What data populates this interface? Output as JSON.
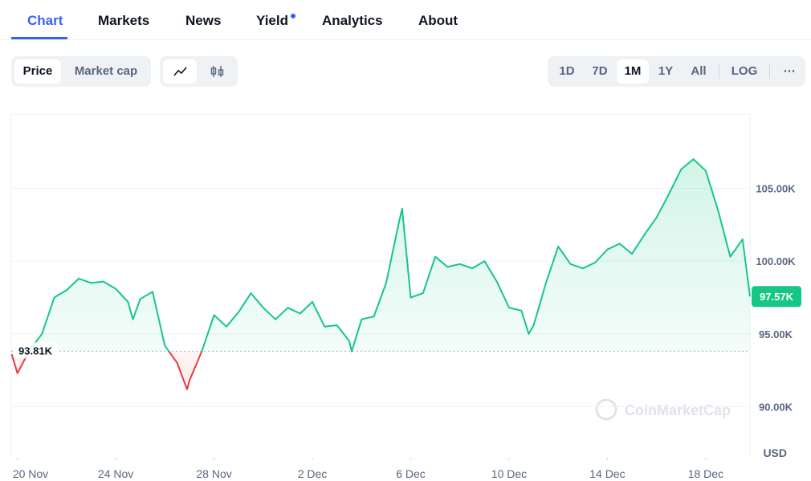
{
  "tabs": {
    "items": [
      "Chart",
      "Markets",
      "News",
      "Yield",
      "Analytics",
      "About"
    ],
    "active": 0
  },
  "metric_toggle": {
    "items": [
      "Price",
      "Market cap"
    ],
    "active": 0
  },
  "range_toggle": {
    "items": [
      "1D",
      "7D",
      "1M",
      "1Y",
      "All"
    ],
    "active": 2
  },
  "scale_button": "LOG",
  "more_button": "⋯",
  "chart_data": {
    "type": "line",
    "x": [
      -0.23,
      0,
      0.5,
      1,
      1.5,
      2,
      2.5,
      3,
      3.5,
      4,
      4.5,
      4.7,
      5,
      5.5,
      6,
      6.5,
      6.9,
      7,
      7.5,
      8,
      8.5,
      9,
      9.5,
      10,
      10.5,
      11,
      11.5,
      12,
      12.5,
      13,
      13.5,
      13.6,
      14,
      14.5,
      15,
      15.5,
      15.65,
      16,
      16.5,
      17,
      17.5,
      18,
      18.5,
      19,
      19.5,
      20,
      20.5,
      20.8,
      21,
      21.5,
      22,
      22.5,
      23,
      23.5,
      24,
      24.5,
      25,
      25.5,
      26,
      26.5,
      27,
      27.5,
      28,
      28.5,
      29,
      29.5,
      29.8
    ],
    "xlim": [
      -0.25,
      29.8
    ],
    "xticks": [
      {
        "value": 0,
        "label": "20 Nov"
      },
      {
        "value": 4,
        "label": "24 Nov"
      },
      {
        "value": 8,
        "label": "28 Nov"
      },
      {
        "value": 12,
        "label": "2 Dec"
      },
      {
        "value": 16,
        "label": "6 Dec"
      },
      {
        "value": 20,
        "label": "10 Dec"
      },
      {
        "value": 24,
        "label": "14 Dec"
      },
      {
        "value": 28,
        "label": "18 Dec"
      }
    ],
    "series": [
      {
        "name": "Price",
        "color": "#16c784",
        "values": [
          93.6,
          92.3,
          93.9,
          95.0,
          97.5,
          98.0,
          98.8,
          98.5,
          98.6,
          98.1,
          97.2,
          96.0,
          97.4,
          97.9,
          94.2,
          93.0,
          91.2,
          91.8,
          93.8,
          96.3,
          95.5,
          96.5,
          97.8,
          96.8,
          96.0,
          96.8,
          96.4,
          97.2,
          95.5,
          95.6,
          94.5,
          93.8,
          96.0,
          96.2,
          98.5,
          102.5,
          103.6,
          97.5,
          97.8,
          100.3,
          99.6,
          99.8,
          99.5,
          100.0,
          98.6,
          96.8,
          96.6,
          95.0,
          95.6,
          98.5,
          101.0,
          99.8,
          99.5,
          99.9,
          100.8,
          101.2,
          100.5,
          101.8,
          103.0,
          104.6,
          106.3,
          107.0,
          106.2,
          103.5,
          100.3,
          101.5,
          97.57
        ]
      }
    ],
    "below_color": "#ea3943",
    "ylim": [
      86.5,
      110.1
    ],
    "yticks": [
      {
        "value": 90,
        "label": "90.00K"
      },
      {
        "value": 95,
        "label": "95.00K"
      },
      {
        "value": 100,
        "label": "100.00K"
      },
      {
        "value": 105,
        "label": "105.00K"
      }
    ],
    "y_unit": "USD",
    "baseline": {
      "value": 93.81,
      "label": "93.81K"
    },
    "current_price": {
      "value": 97.57,
      "label": "97.57K"
    },
    "grid": true,
    "watermark": "CoinMarketCap"
  }
}
